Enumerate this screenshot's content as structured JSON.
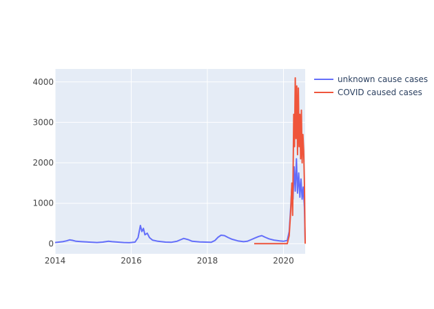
{
  "chart_data": {
    "type": "line",
    "title": "",
    "xlabel": "",
    "ylabel": "",
    "xlim": [
      2014.0,
      2020.57
    ],
    "ylim": [
      -250,
      4320
    ],
    "grid": true,
    "legend_position": "top-right",
    "background": "#e5ecf6",
    "x_ticks": [
      {
        "value": 2014,
        "label": "2014"
      },
      {
        "value": 2016,
        "label": "2016"
      },
      {
        "value": 2018,
        "label": "2018"
      },
      {
        "value": 2020,
        "label": "2020"
      }
    ],
    "y_ticks": [
      {
        "value": 0,
        "label": "0"
      },
      {
        "value": 1000,
        "label": "1000"
      },
      {
        "value": 2000,
        "label": "2000"
      },
      {
        "value": 3000,
        "label": "3000"
      },
      {
        "value": 4000,
        "label": "4000"
      }
    ],
    "series": [
      {
        "name": "unknown cause cases",
        "color": "#636efa",
        "points": [
          [
            2014.0,
            30
          ],
          [
            2014.1,
            40
          ],
          [
            2014.2,
            50
          ],
          [
            2014.3,
            70
          ],
          [
            2014.38,
            95
          ],
          [
            2014.45,
            85
          ],
          [
            2014.55,
            60
          ],
          [
            2014.7,
            50
          ],
          [
            2014.9,
            40
          ],
          [
            2015.1,
            30
          ],
          [
            2015.25,
            40
          ],
          [
            2015.4,
            60
          ],
          [
            2015.5,
            50
          ],
          [
            2015.65,
            40
          ],
          [
            2015.8,
            30
          ],
          [
            2015.95,
            25
          ],
          [
            2016.1,
            40
          ],
          [
            2016.18,
            150
          ],
          [
            2016.24,
            450
          ],
          [
            2016.28,
            300
          ],
          [
            2016.32,
            380
          ],
          [
            2016.36,
            220
          ],
          [
            2016.42,
            260
          ],
          [
            2016.48,
            150
          ],
          [
            2016.56,
            90
          ],
          [
            2016.7,
            60
          ],
          [
            2016.9,
            40
          ],
          [
            2017.05,
            35
          ],
          [
            2017.2,
            60
          ],
          [
            2017.3,
            100
          ],
          [
            2017.38,
            130
          ],
          [
            2017.5,
            100
          ],
          [
            2017.6,
            60
          ],
          [
            2017.8,
            45
          ],
          [
            2017.95,
            40
          ],
          [
            2018.1,
            35
          ],
          [
            2018.2,
            80
          ],
          [
            2018.28,
            160
          ],
          [
            2018.36,
            210
          ],
          [
            2018.45,
            200
          ],
          [
            2018.55,
            150
          ],
          [
            2018.65,
            110
          ],
          [
            2018.8,
            70
          ],
          [
            2018.95,
            50
          ],
          [
            2019.05,
            60
          ],
          [
            2019.15,
            100
          ],
          [
            2019.25,
            140
          ],
          [
            2019.35,
            180
          ],
          [
            2019.43,
            200
          ],
          [
            2019.52,
            160
          ],
          [
            2019.62,
            120
          ],
          [
            2019.75,
            90
          ],
          [
            2019.9,
            70
          ],
          [
            2020.0,
            60
          ],
          [
            2020.1,
            80
          ],
          [
            2020.15,
            300
          ],
          [
            2020.19,
            900
          ],
          [
            2020.22,
            1450
          ],
          [
            2020.25,
            1100
          ],
          [
            2020.28,
            1900
          ],
          [
            2020.31,
            1300
          ],
          [
            2020.34,
            2100
          ],
          [
            2020.37,
            1250
          ],
          [
            2020.4,
            1750
          ],
          [
            2020.43,
            1150
          ],
          [
            2020.46,
            1600
          ],
          [
            2020.49,
            1100
          ],
          [
            2020.52,
            1400
          ],
          [
            2020.55,
            900
          ],
          [
            2020.57,
            50
          ]
        ]
      },
      {
        "name": "COVID caused cases",
        "color": "#ef553b",
        "points": [
          [
            2019.23,
            0
          ],
          [
            2019.6,
            0
          ],
          [
            2019.9,
            0
          ],
          [
            2020.1,
            0
          ],
          [
            2020.15,
            200
          ],
          [
            2020.19,
            800
          ],
          [
            2020.22,
            1500
          ],
          [
            2020.24,
            700
          ],
          [
            2020.27,
            3200
          ],
          [
            2020.29,
            2400
          ],
          [
            2020.31,
            4100
          ],
          [
            2020.33,
            2600
          ],
          [
            2020.35,
            3900
          ],
          [
            2020.37,
            2200
          ],
          [
            2020.39,
            3850
          ],
          [
            2020.41,
            2400
          ],
          [
            2020.43,
            3200
          ],
          [
            2020.45,
            2100
          ],
          [
            2020.47,
            3300
          ],
          [
            2020.49,
            2000
          ],
          [
            2020.51,
            2700
          ],
          [
            2020.53,
            2300
          ],
          [
            2020.55,
            1500
          ],
          [
            2020.57,
            0
          ]
        ]
      }
    ]
  }
}
